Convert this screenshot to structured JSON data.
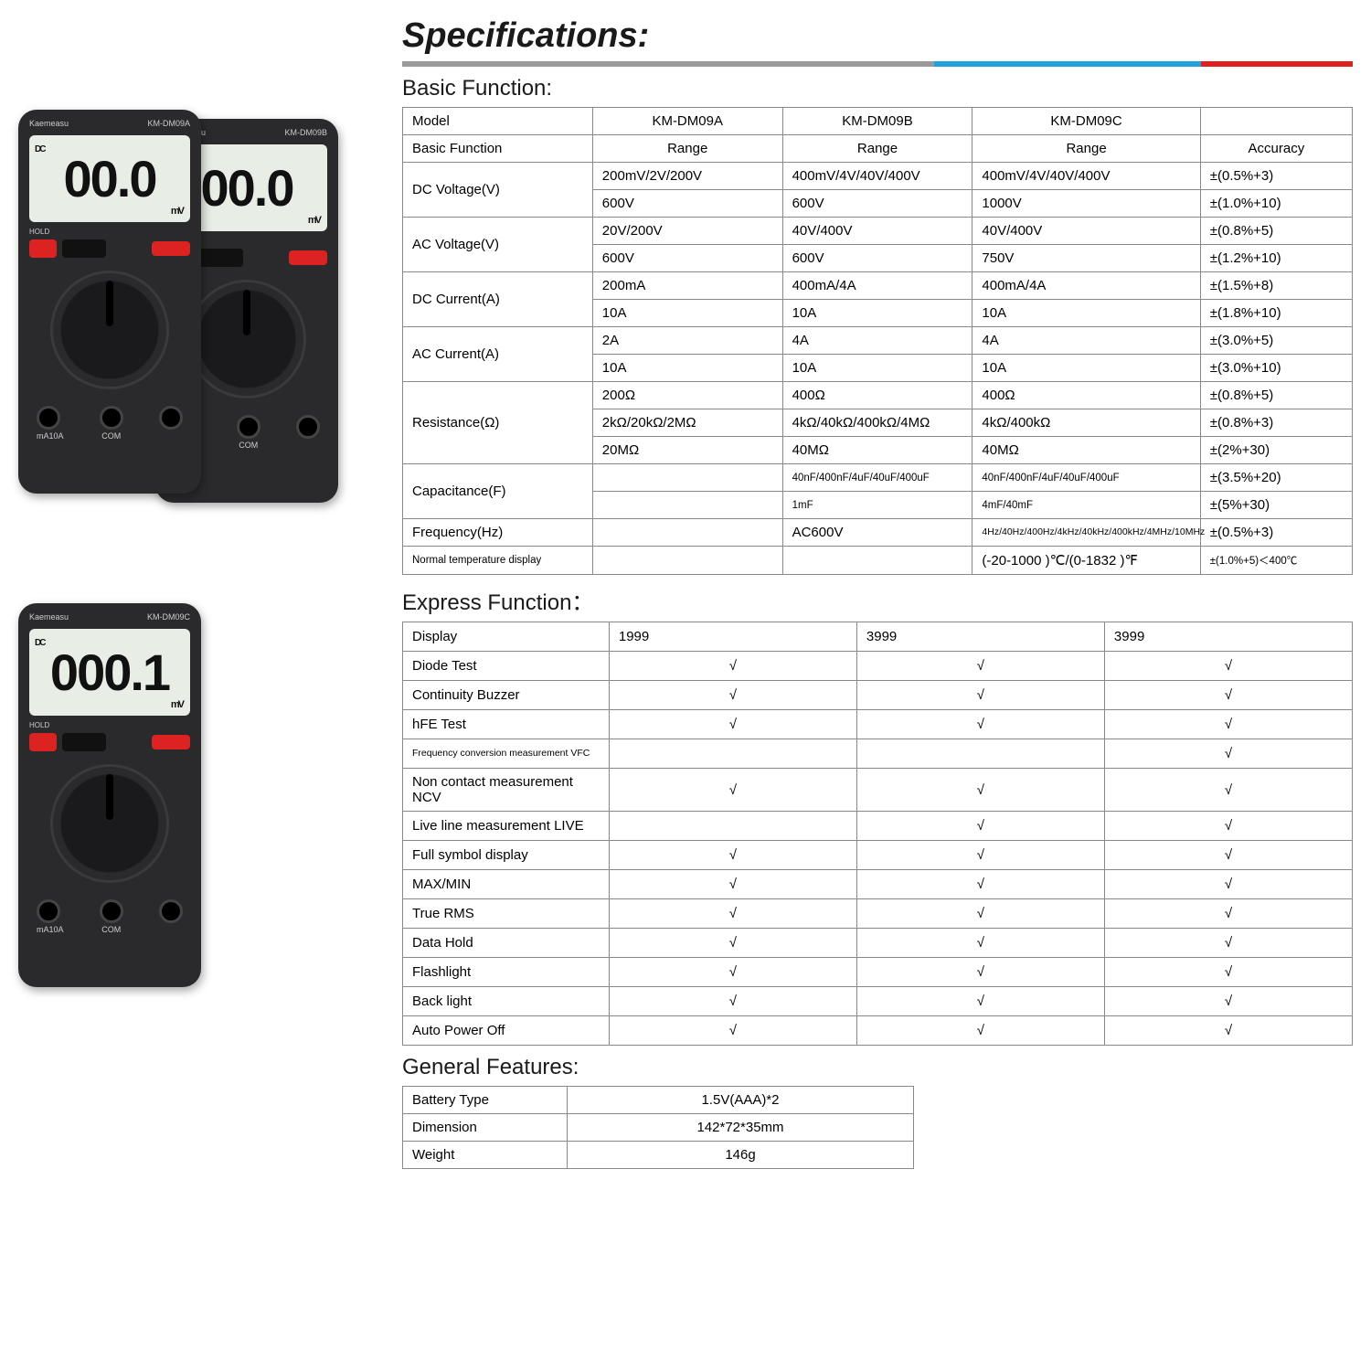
{
  "title": "Specifications:",
  "bar_colors": {
    "gray": "#9a9a9a",
    "blue": "#1fa3e0",
    "red": "#e01f1f"
  },
  "meters": {
    "brand": "Kaemeasu",
    "subA": "KM-DM09A",
    "subB": "KM-DM09B",
    "subC": "KM-DM09C",
    "lcdA": "00.0",
    "lcdB": "00.0",
    "lcdC": "000.1",
    "dc": "DC",
    "mv": "mV",
    "hold": "HOLD",
    "port_left": "mA10A",
    "port_mid": "COM"
  },
  "basic": {
    "heading": "Basic Function:",
    "col_widths": [
      "20%",
      "20%",
      "20%",
      "24%",
      "16%"
    ],
    "header1": [
      "Model",
      "KM-DM09A",
      "KM-DM09B",
      "KM-DM09C",
      ""
    ],
    "header2": [
      "Basic Function",
      "Range",
      "Range",
      "Range",
      "Accuracy"
    ],
    "groups": [
      {
        "label": "DC Voltage(V)",
        "rows": [
          [
            "200mV/2V/200V",
            "400mV/4V/40V/400V",
            "400mV/4V/40V/400V",
            "±(0.5%+3)"
          ],
          [
            "600V",
            "600V",
            "1000V",
            "±(1.0%+10)"
          ]
        ]
      },
      {
        "label": "AC Voltage(V)",
        "rows": [
          [
            "20V/200V",
            "40V/400V",
            "40V/400V",
            "±(0.8%+5)"
          ],
          [
            "600V",
            "600V",
            "750V",
            "±(1.2%+10)"
          ]
        ]
      },
      {
        "label": "DC Current(A)",
        "rows": [
          [
            "200mA",
            "400mA/4A",
            "400mA/4A",
            "±(1.5%+8)"
          ],
          [
            "10A",
            "10A",
            "10A",
            "±(1.8%+10)"
          ]
        ]
      },
      {
        "label": "AC Current(A)",
        "rows": [
          [
            "2A",
            "4A",
            "4A",
            "±(3.0%+5)"
          ],
          [
            "10A",
            "10A",
            "10A",
            "±(3.0%+10)"
          ]
        ]
      },
      {
        "label": "Resistance(Ω)",
        "rows": [
          [
            "200Ω",
            "400Ω",
            "400Ω",
            "±(0.8%+5)"
          ],
          [
            "2kΩ/20kΩ/2MΩ",
            "4kΩ/40kΩ/400kΩ/4MΩ",
            "4kΩ/400kΩ",
            "±(0.8%+3)"
          ],
          [
            "20MΩ",
            "40MΩ",
            "40MΩ",
            "±(2%+30)"
          ]
        ]
      },
      {
        "label": "Capacitance(F)",
        "rows": [
          [
            "",
            "40nF/400nF/4uF/40uF/400uF",
            "40nF/400nF/4uF/40uF/400uF",
            "±(3.5%+20)"
          ],
          [
            "",
            "1mF",
            "4mF/40mF",
            "±(5%+30)"
          ]
        ]
      }
    ],
    "single_rows": [
      [
        "Frequency(Hz)",
        "",
        "AC600V",
        "4Hz/40Hz/400Hz/4kHz/40kHz/400kHz/4MHz/10MHz",
        "±(0.5%+3)"
      ],
      [
        "Normal temperature display",
        "",
        "",
        "(-20-1000 )℃/(0-1832 )℉",
        "±(1.0%+5)＜400℃"
      ]
    ]
  },
  "express": {
    "heading": "Express Function：",
    "col_widths": [
      "20%",
      "24%",
      "24%",
      "24%"
    ],
    "rows": [
      [
        "Display",
        "1999",
        "3999",
        "3999"
      ],
      [
        "Diode Test",
        "√",
        "√",
        "√"
      ],
      [
        "Continuity Buzzer",
        "√",
        "√",
        "√"
      ],
      [
        "hFE Test",
        "√",
        "√",
        "√"
      ],
      [
        "Frequency conversion measurement VFC",
        "",
        "",
        "√"
      ],
      [
        "Non contact measurement NCV",
        "√",
        "√",
        "√"
      ],
      [
        "Live line measurement LIVE",
        "",
        "√",
        "√"
      ],
      [
        "Full symbol display",
        "√",
        "√",
        "√"
      ],
      [
        "MAX/MIN",
        "√",
        "√",
        "√"
      ],
      [
        "True RMS",
        "√",
        "√",
        "√"
      ],
      [
        "Data Hold",
        "√",
        "√",
        "√"
      ],
      [
        "Flashlight",
        "√",
        "√",
        "√"
      ],
      [
        "Back light",
        "√",
        "√",
        "√"
      ],
      [
        "Auto Power Off",
        "√",
        "√",
        "√"
      ]
    ],
    "tiny_rows": [
      4
    ]
  },
  "general": {
    "heading": "General Features:",
    "rows": [
      [
        "Battery Type",
        "1.5V(AAA)*2"
      ],
      [
        "Dimension",
        "142*72*35mm"
      ],
      [
        "Weight",
        "146g"
      ]
    ]
  }
}
